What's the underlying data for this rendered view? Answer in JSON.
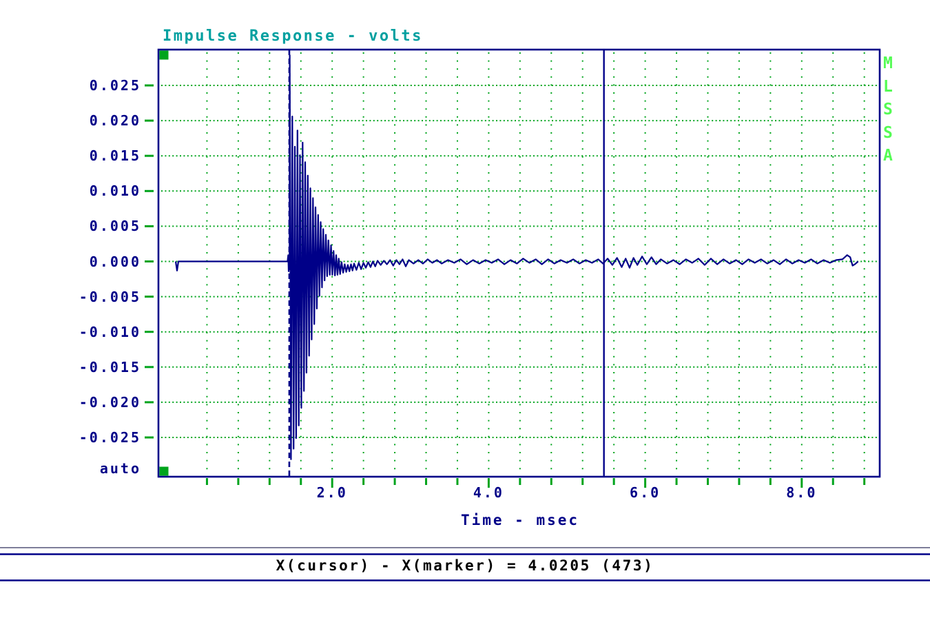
{
  "header": {
    "title": "Impulse Response - volts"
  },
  "colors": {
    "navy": "#000088",
    "teal": "#00A0A0",
    "grid_green": "#00A41C",
    "bright_green": "#55FB55",
    "black": "#000000",
    "background": "#FFFFFF"
  },
  "y_axis": {
    "tick_labels": [
      "0.025",
      "0.020",
      "0.015",
      "0.010",
      "0.005",
      "0.000",
      "-0.005",
      "-0.010",
      "-0.015",
      "-0.020",
      "-0.025"
    ],
    "tick_values": [
      0.025,
      0.02,
      0.015,
      0.01,
      0.005,
      0.0,
      -0.005,
      -0.01,
      -0.015,
      -0.02,
      -0.025
    ],
    "mode_label": "auto"
  },
  "x_axis": {
    "label": "Time - msec",
    "tick_labels": [
      "2.0",
      "4.0",
      "6.0",
      "8.0"
    ],
    "tick_values": [
      2.0,
      4.0,
      6.0,
      8.0
    ],
    "minor_step_msec": 0.4
  },
  "watermark": {
    "text": "MLSSA",
    "letters": [
      "M",
      "L",
      "S",
      "S",
      "A"
    ]
  },
  "status_bar": {
    "text": "X(cursor) - X(marker) = 4.0205 (473)"
  },
  "chart_data": {
    "type": "line",
    "title": "Impulse Response - volts",
    "xlabel": "Time - msec",
    "ylabel": "volts",
    "xlim": [
      -0.22,
      9.0
    ],
    "ylim": [
      -0.0307,
      0.0301
    ],
    "grid": true,
    "legend_position": "none",
    "x_major_ticks": [
      2.0,
      4.0,
      6.0,
      8.0
    ],
    "x_grid_step": 0.4,
    "y_ticks": [
      0.025,
      0.02,
      0.015,
      0.01,
      0.005,
      0.0,
      -0.005,
      -0.01,
      -0.015,
      -0.02,
      -0.025
    ],
    "y_grid_step": 0.005,
    "marker_x_msec": 1.452,
    "cursor_x_msec": 5.4725,
    "cursor_minus_marker_msec": 4.0205,
    "cursor_minus_marker_samples": 473,
    "series": [
      {
        "name": "impulse_response_volts",
        "color": "#000088",
        "points": [
          [
            0,
            0
          ],
          [
            0.018,
            -0.0013
          ],
          [
            0.035,
            0
          ],
          [
            0.4,
            0
          ],
          [
            0.8,
            0
          ],
          [
            1.2,
            0
          ],
          [
            1.43,
            0
          ],
          [
            1.438,
            0.0009
          ],
          [
            1.444,
            -0.0014
          ],
          [
            1.45,
            0.0006
          ],
          [
            1.455,
            0
          ],
          [
            1.458,
            0.0293
          ],
          [
            1.474,
            -0.0281
          ],
          [
            1.49,
            0.0206
          ],
          [
            1.507,
            -0.0266
          ],
          [
            1.523,
            0.0163
          ],
          [
            1.54,
            -0.0251
          ],
          [
            1.556,
            0.0186
          ],
          [
            1.573,
            -0.0233
          ],
          [
            1.589,
            0.0151
          ],
          [
            1.606,
            -0.0208
          ],
          [
            1.622,
            0.0169
          ],
          [
            1.639,
            -0.0184
          ],
          [
            1.655,
            0.0141
          ],
          [
            1.672,
            -0.0158
          ],
          [
            1.688,
            0.0122
          ],
          [
            1.705,
            -0.0134
          ],
          [
            1.721,
            0.0104
          ],
          [
            1.738,
            -0.0111
          ],
          [
            1.754,
            0.009
          ],
          [
            1.771,
            -0.0089
          ],
          [
            1.787,
            0.0077
          ],
          [
            1.804,
            -0.0067
          ],
          [
            1.82,
            0.0066
          ],
          [
            1.837,
            -0.0049
          ],
          [
            1.853,
            0.0056
          ],
          [
            1.87,
            -0.0037
          ],
          [
            1.886,
            0.0046
          ],
          [
            1.903,
            -0.0027
          ],
          [
            1.919,
            0.0038
          ],
          [
            1.936,
            -0.0021
          ],
          [
            1.952,
            0.003
          ],
          [
            1.969,
            -0.0019
          ],
          [
            1.985,
            0.0023
          ],
          [
            2.002,
            -0.0019
          ],
          [
            2.018,
            0.0015
          ],
          [
            2.035,
            -0.002
          ],
          [
            2.051,
            0.0009
          ],
          [
            2.068,
            -0.0019
          ],
          [
            2.084,
            0.0004
          ],
          [
            2.101,
            -0.0018
          ],
          [
            2.12,
            -0.0001
          ],
          [
            2.14,
            -0.0016
          ],
          [
            2.16,
            -0.0004
          ],
          [
            2.18,
            -0.0015
          ],
          [
            2.2,
            -0.0005
          ],
          [
            2.22,
            -0.0014
          ],
          [
            2.24,
            -0.0004
          ],
          [
            2.26,
            -0.0013
          ],
          [
            2.28,
            -0.0003
          ],
          [
            2.31,
            -0.0012
          ],
          [
            2.34,
            -0.0002
          ],
          [
            2.37,
            -0.0011
          ],
          [
            2.4,
            -0.0002
          ],
          [
            2.43,
            -0.0009
          ],
          [
            2.46,
            -0.0001
          ],
          [
            2.49,
            -0.0008
          ],
          [
            2.52,
            0
          ],
          [
            2.55,
            -0.0007
          ],
          [
            2.58,
            0.0001
          ],
          [
            2.62,
            -0.0005
          ],
          [
            2.66,
            0.0001
          ],
          [
            2.7,
            -0.0004
          ],
          [
            2.74,
            0.0002
          ],
          [
            2.78,
            -0.0006
          ],
          [
            2.82,
            0.0002
          ],
          [
            2.86,
            -0.0004
          ],
          [
            2.9,
            0.0003
          ],
          [
            2.94,
            -0.0007
          ],
          [
            2.98,
            0.0002
          ],
          [
            3.04,
            -0.0003
          ],
          [
            3.1,
            0.0002
          ],
          [
            3.16,
            -0.0003
          ],
          [
            3.22,
            0.0003
          ],
          [
            3.28,
            -0.0002
          ],
          [
            3.34,
            0.0002
          ],
          [
            3.4,
            -0.0003
          ],
          [
            3.48,
            0.0002
          ],
          [
            3.56,
            -0.0002
          ],
          [
            3.64,
            0.0003
          ],
          [
            3.72,
            -0.0004
          ],
          [
            3.8,
            0.0002
          ],
          [
            3.88,
            -0.0003
          ],
          [
            3.96,
            0.0002
          ],
          [
            4.04,
            -0.0002
          ],
          [
            4.12,
            0.0003
          ],
          [
            4.2,
            -0.0004
          ],
          [
            4.28,
            0.0002
          ],
          [
            4.36,
            -0.0003
          ],
          [
            4.44,
            0.0004
          ],
          [
            4.52,
            -0.0002
          ],
          [
            4.6,
            0.0003
          ],
          [
            4.68,
            -0.0004
          ],
          [
            4.76,
            0.0003
          ],
          [
            4.84,
            -0.0003
          ],
          [
            4.92,
            0.0002
          ],
          [
            5.0,
            -0.0002
          ],
          [
            5.08,
            0.0003
          ],
          [
            5.16,
            -0.0003
          ],
          [
            5.24,
            0.0002
          ],
          [
            5.32,
            -0.0002
          ],
          [
            5.4,
            0.0003
          ],
          [
            5.46,
            -0.0003
          ],
          [
            5.52,
            0.0004
          ],
          [
            5.58,
            -0.0005
          ],
          [
            5.64,
            0.0005
          ],
          [
            5.7,
            -0.0008
          ],
          [
            5.75,
            0.0004
          ],
          [
            5.8,
            -0.0009
          ],
          [
            5.85,
            0.0005
          ],
          [
            5.9,
            -0.0005
          ],
          [
            5.96,
            0.0007
          ],
          [
            6.02,
            -0.0004
          ],
          [
            6.08,
            0.0006
          ],
          [
            6.14,
            -0.0004
          ],
          [
            6.2,
            0.0003
          ],
          [
            6.28,
            -0.0003
          ],
          [
            6.36,
            0.0002
          ],
          [
            6.44,
            -0.0004
          ],
          [
            6.52,
            0.0003
          ],
          [
            6.6,
            -0.0002
          ],
          [
            6.68,
            0.0004
          ],
          [
            6.76,
            -0.0005
          ],
          [
            6.84,
            0.0004
          ],
          [
            6.92,
            -0.0004
          ],
          [
            7.0,
            0.0003
          ],
          [
            7.08,
            -0.0003
          ],
          [
            7.16,
            0.0002
          ],
          [
            7.24,
            -0.0004
          ],
          [
            7.32,
            0.0003
          ],
          [
            7.4,
            -0.0002
          ],
          [
            7.48,
            0.0003
          ],
          [
            7.56,
            -0.0003
          ],
          [
            7.64,
            0.0002
          ],
          [
            7.72,
            -0.0004
          ],
          [
            7.8,
            0.0003
          ],
          [
            7.88,
            -0.0003
          ],
          [
            7.96,
            0.0002
          ],
          [
            8.04,
            -0.0002
          ],
          [
            8.12,
            0.0003
          ],
          [
            8.2,
            -0.0003
          ],
          [
            8.28,
            0.0002
          ],
          [
            8.36,
            -0.0002
          ],
          [
            8.44,
            0.0002
          ],
          [
            8.52,
            0.0003
          ],
          [
            8.58,
            0.0009
          ],
          [
            8.62,
            0.0006
          ],
          [
            8.65,
            -0.0006
          ],
          [
            8.68,
            -0.0004
          ],
          [
            8.71,
            -0.0001
          ],
          [
            8.72,
            0
          ]
        ]
      }
    ]
  }
}
